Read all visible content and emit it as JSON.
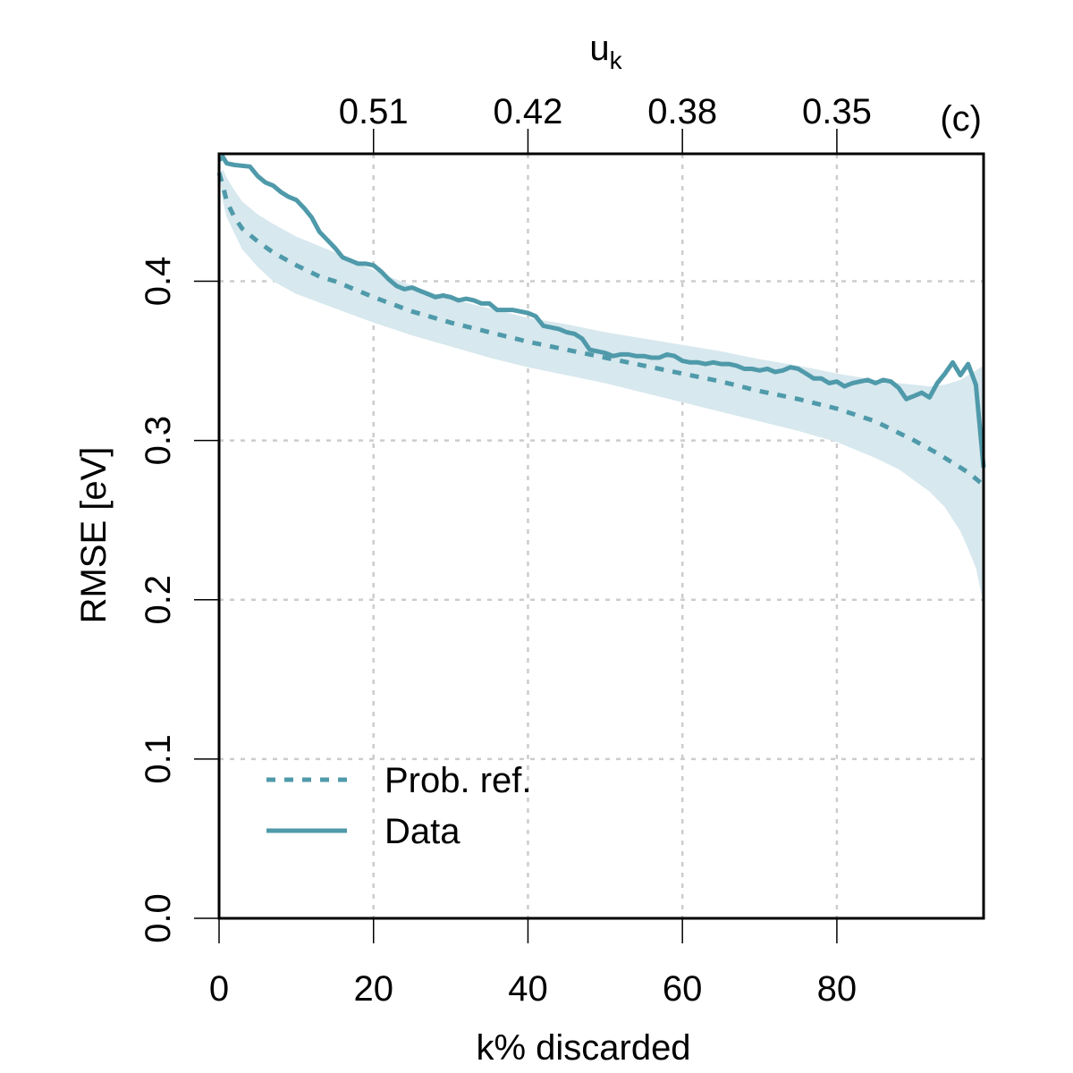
{
  "chart_data": {
    "type": "line",
    "panel_label": "(c)",
    "xlabel": "k% discarded",
    "ylabel": "RMSE [eV]",
    "top_axis_label": "u",
    "top_axis_label_sub": "k",
    "xlim": [
      0,
      99
    ],
    "ylim": [
      0,
      0.48
    ],
    "x_ticks": [
      0,
      20,
      40,
      60,
      80
    ],
    "x_tick_labels": [
      "0",
      "20",
      "40",
      "60",
      "80"
    ],
    "y_ticks": [
      0.0,
      0.1,
      0.2,
      0.3,
      0.4
    ],
    "y_tick_labels": [
      "0.0",
      "0.1",
      "0.2",
      "0.3",
      "0.4"
    ],
    "top_ticks": [
      20,
      40,
      60,
      80
    ],
    "top_tick_labels": [
      "0.51",
      "0.42",
      "0.38",
      "0.35"
    ],
    "grid": true,
    "legend_position": "bottom-left",
    "colors": {
      "series": "#4f9aaa",
      "band": "#d7e8ee"
    },
    "series": [
      {
        "name": "Prob. ref.",
        "style": "dashed",
        "x": [
          0,
          0.5,
          1,
          2,
          3,
          5,
          7,
          10,
          13,
          15,
          20,
          25,
          30,
          35,
          40,
          45,
          50,
          55,
          60,
          65,
          70,
          75,
          80,
          85,
          90,
          93,
          95,
          97,
          99
        ],
        "values": [
          0.468,
          0.46,
          0.45,
          0.44,
          0.433,
          0.425,
          0.418,
          0.41,
          0.403,
          0.4,
          0.39,
          0.381,
          0.374,
          0.368,
          0.362,
          0.357,
          0.352,
          0.347,
          0.342,
          0.337,
          0.331,
          0.326,
          0.32,
          0.312,
          0.3,
          0.292,
          0.286,
          0.28,
          0.272
        ]
      },
      {
        "name": "Data",
        "style": "solid",
        "x": [
          0,
          0.5,
          1,
          2,
          4,
          5,
          6,
          7,
          8,
          9,
          10,
          11,
          12,
          13,
          14,
          15,
          16,
          17,
          18,
          19,
          20,
          21,
          22,
          23,
          24,
          25,
          26,
          27,
          28,
          29,
          30,
          31,
          32,
          33,
          34,
          35,
          36,
          37,
          38,
          39,
          40,
          41,
          42,
          43,
          44,
          45,
          46,
          47,
          48,
          49,
          50,
          51,
          52,
          53,
          54,
          55,
          56,
          57,
          58,
          59,
          60,
          61,
          62,
          63,
          64,
          65,
          66,
          67,
          68,
          69,
          70,
          71,
          72,
          73,
          74,
          75,
          76,
          77,
          78,
          79,
          80,
          81,
          82,
          83,
          84,
          85,
          86,
          87,
          88,
          89,
          90,
          91,
          92,
          93,
          94,
          95,
          96,
          97,
          98,
          99
        ],
        "values": [
          0.476,
          0.478,
          0.474,
          0.473,
          0.472,
          0.466,
          0.462,
          0.46,
          0.456,
          0.453,
          0.451,
          0.446,
          0.44,
          0.431,
          0.426,
          0.421,
          0.415,
          0.413,
          0.411,
          0.411,
          0.41,
          0.406,
          0.401,
          0.397,
          0.395,
          0.396,
          0.394,
          0.392,
          0.39,
          0.391,
          0.39,
          0.388,
          0.389,
          0.388,
          0.386,
          0.386,
          0.382,
          0.382,
          0.382,
          0.381,
          0.38,
          0.378,
          0.372,
          0.371,
          0.37,
          0.368,
          0.367,
          0.364,
          0.357,
          0.356,
          0.355,
          0.353,
          0.354,
          0.354,
          0.353,
          0.353,
          0.352,
          0.352,
          0.354,
          0.353,
          0.35,
          0.349,
          0.349,
          0.348,
          0.349,
          0.348,
          0.348,
          0.347,
          0.345,
          0.345,
          0.344,
          0.345,
          0.343,
          0.344,
          0.346,
          0.345,
          0.342,
          0.339,
          0.339,
          0.336,
          0.337,
          0.334,
          0.336,
          0.337,
          0.338,
          0.336,
          0.338,
          0.337,
          0.333,
          0.326,
          0.328,
          0.33,
          0.327,
          0.336,
          0.342,
          0.349,
          0.341,
          0.348,
          0.335,
          0.283
        ]
      }
    ],
    "band": {
      "name": "Prob. ref. interval",
      "x": [
        0,
        0.5,
        1,
        2,
        3,
        5,
        7,
        10,
        15,
        20,
        25,
        30,
        35,
        40,
        45,
        50,
        55,
        60,
        65,
        70,
        75,
        80,
        85,
        88,
        90,
        92,
        94,
        96,
        97,
        98,
        99
      ],
      "lower": [
        0.468,
        0.45,
        0.44,
        0.43,
        0.42,
        0.409,
        0.4,
        0.392,
        0.383,
        0.374,
        0.366,
        0.359,
        0.352,
        0.346,
        0.341,
        0.336,
        0.33,
        0.324,
        0.318,
        0.312,
        0.306,
        0.299,
        0.289,
        0.282,
        0.275,
        0.268,
        0.258,
        0.243,
        0.232,
        0.22,
        0.197
      ],
      "upper": [
        0.468,
        0.47,
        0.465,
        0.457,
        0.45,
        0.442,
        0.436,
        0.428,
        0.418,
        0.407,
        0.397,
        0.389,
        0.383,
        0.377,
        0.373,
        0.368,
        0.364,
        0.36,
        0.356,
        0.351,
        0.347,
        0.342,
        0.338,
        0.336,
        0.335,
        0.334,
        0.335,
        0.338,
        0.341,
        0.344,
        0.347
      ]
    }
  }
}
